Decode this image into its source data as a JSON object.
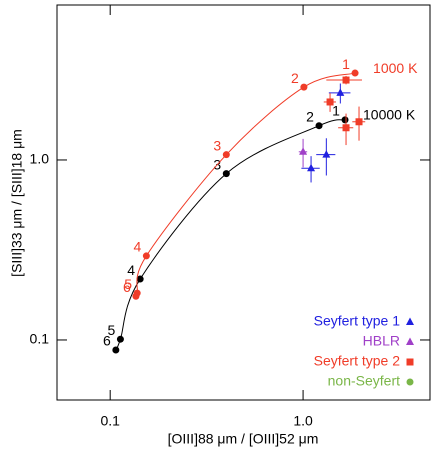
{
  "chart_data": {
    "type": "scatter",
    "x_label": "[OIII]88 μm / [OIII]52 μm",
    "y_label": "[SIII]33 μm / [SIII]18 μm",
    "x_log": true,
    "y_log": true,
    "xlim": [
      0.053,
      4.55
    ],
    "ylim": [
      0.0464,
      7.26
    ],
    "xticks": [
      0.1,
      {
        "value": 1,
        "label": "1.0"
      }
    ],
    "yticks": [
      0.1,
      {
        "value": 1,
        "label": "1.0"
      }
    ],
    "legend": "lower right",
    "series": [
      {
        "name": "10000 K",
        "color": "#000000",
        "line": true,
        "marker": "circle",
        "x": [
          1.65,
          1.21,
          0.4,
          0.143,
          0.113,
          0.107
        ],
        "values": [
          1.67,
          1.55,
          0.84,
          0.218,
          0.101,
          0.088
        ],
        "labels": [
          "1",
          "2",
          "3",
          "4",
          "5",
          "6"
        ]
      },
      {
        "name": "1000 K",
        "color": "#f03c28",
        "line": true,
        "marker": "circle",
        "x": [
          1.86,
          1.01,
          0.4,
          0.154,
          0.138,
          0.136
        ],
        "values": [
          3.04,
          2.54,
          1.07,
          0.293,
          0.182,
          0.175
        ],
        "labels": [
          "1",
          "2",
          "3",
          "4",
          "5",
          "6"
        ]
      },
      {
        "name": "Seyfert type 1",
        "color": "#2020e0",
        "line": false,
        "marker": "triangle",
        "x": [
          1.56,
          1.32,
          1.1
        ],
        "values": [
          2.36,
          1.07,
          0.9
        ],
        "xerr": [
          0.2,
          0.15,
          0.12
        ],
        "yerr": [
          0.3,
          0.25,
          0.15
        ]
      },
      {
        "name": "HBLR",
        "color": "#a040c8",
        "line": false,
        "marker": "triangle",
        "x": [
          1.0
        ],
        "values": [
          1.11
        ],
        "xerr": [
          0.05
        ],
        "yerr": [
          0.2
        ]
      },
      {
        "name": "Seyfert type 2",
        "color": "#f03c28",
        "line": false,
        "marker": "square",
        "x": [
          1.67,
          1.38,
          1.95,
          1.67
        ],
        "values": [
          2.78,
          2.1,
          1.63,
          1.51
        ],
        "xerr": [
          0.35,
          0.1,
          0.15,
          0.15
        ],
        "yerr": [
          0.15,
          0.25,
          0.35,
          0.3
        ]
      },
      {
        "name": "non-Seyfert",
        "color": "#7ab648",
        "line": false,
        "marker": "circle",
        "x": [],
        "values": []
      }
    ]
  }
}
